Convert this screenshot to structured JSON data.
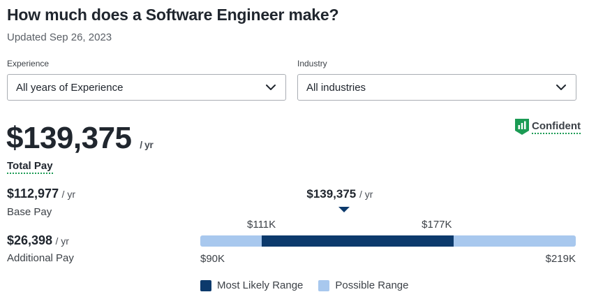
{
  "header": {
    "title": "How much does a Software Engineer make?",
    "updated": "Updated Sep 26, 2023"
  },
  "filters": {
    "experience": {
      "label": "Experience",
      "value": "All years of Experience"
    },
    "industry": {
      "label": "Industry",
      "value": "All industries"
    }
  },
  "total_pay": {
    "amount": "$139,375",
    "unit": "/ yr",
    "label": "Total Pay"
  },
  "confidence": {
    "label": "Confident",
    "icon": "confidence-bars-icon",
    "color": "#1b9b54"
  },
  "base_pay": {
    "amount": "$112,977",
    "unit": "/ yr",
    "label": "Base Pay"
  },
  "additional_pay": {
    "amount": "$26,398",
    "unit": "/ yr",
    "label": "Additional Pay"
  },
  "range": {
    "median_label": "$139,375",
    "median_unit": "/ yr",
    "likely_low_label": "$111K",
    "likely_high_label": "$177K",
    "possible_low_label": "$90K",
    "possible_high_label": "$219K",
    "median": 139375,
    "likely_low": 111000,
    "likely_high": 177000,
    "possible_low": 90000,
    "possible_high": 219000,
    "colors": {
      "likely": "#0c3a6c",
      "possible": "#a8c8ee"
    }
  },
  "legend": {
    "likely": "Most Likely Range",
    "possible": "Possible Range"
  }
}
